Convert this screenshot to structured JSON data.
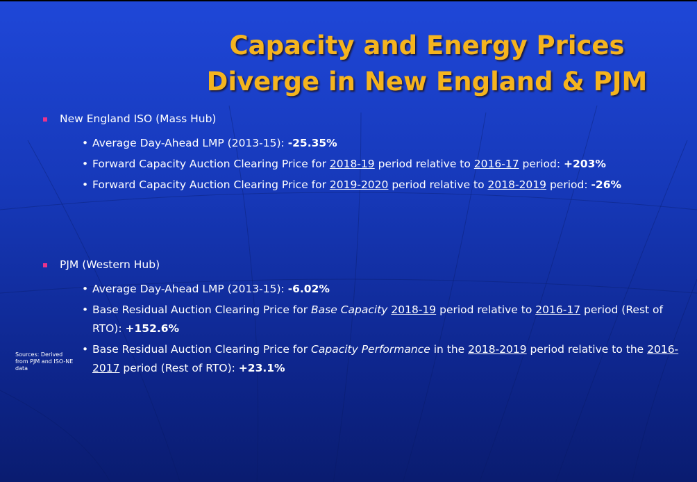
{
  "title": [
    "Capacity and Energy Prices",
    "Diverge in New England & PJM"
  ],
  "sections": [
    {
      "heading": "New England ISO (Mass Hub)",
      "items": [
        [
          {
            "text": "Average Day-Ahead LMP (2013-15): "
          },
          {
            "text": "-25.35%",
            "style": "bold"
          }
        ],
        [
          {
            "text": "Forward Capacity Auction Clearing Price for "
          },
          {
            "text": "2018-19",
            "style": "underline"
          },
          {
            "text": " period relative to "
          },
          {
            "text": "2016-17",
            "style": "underline"
          },
          {
            "text": " period: "
          },
          {
            "text": "+203%",
            "style": "bold"
          }
        ],
        [
          {
            "text": "Forward Capacity Auction Clearing Price for "
          },
          {
            "text": "2019-2020",
            "style": "underline"
          },
          {
            "text": " period relative to "
          },
          {
            "text": "2018-2019",
            "style": "underline"
          },
          {
            "text": " period: "
          },
          {
            "text": "-26%",
            "style": "bold"
          }
        ]
      ]
    },
    {
      "heading": "PJM (Western Hub)",
      "items": [
        [
          {
            "text": "Average Day-Ahead LMP (2013-15): "
          },
          {
            "text": "-6.02%",
            "style": "bold"
          }
        ],
        [
          {
            "text": "Base Residual Auction Clearing Price for "
          },
          {
            "text": "Base Capacity",
            "style": "italic"
          },
          {
            "text": " "
          },
          {
            "text": "2018-19",
            "style": "underline"
          },
          {
            "text": " period relative to "
          },
          {
            "text": "2016-17",
            "style": "underline"
          },
          {
            "text": " period (Rest of RTO): "
          },
          {
            "text": "+152.6%",
            "style": "bold"
          }
        ],
        [
          {
            "text": "Base Residual Auction Clearing Price for "
          },
          {
            "text": "Capacity Performance",
            "style": "italic"
          },
          {
            "text": " in the "
          },
          {
            "text": "2018-2019",
            "style": "underline"
          },
          {
            "text": " period relative to the "
          },
          {
            "text": "2016-2017",
            "style": "underline"
          },
          {
            "text": " period (Rest of RTO): "
          },
          {
            "text": "+23.1%",
            "style": "bold"
          }
        ]
      ]
    }
  ],
  "source": "Sources: Derived from PJM and ISO-NE data"
}
